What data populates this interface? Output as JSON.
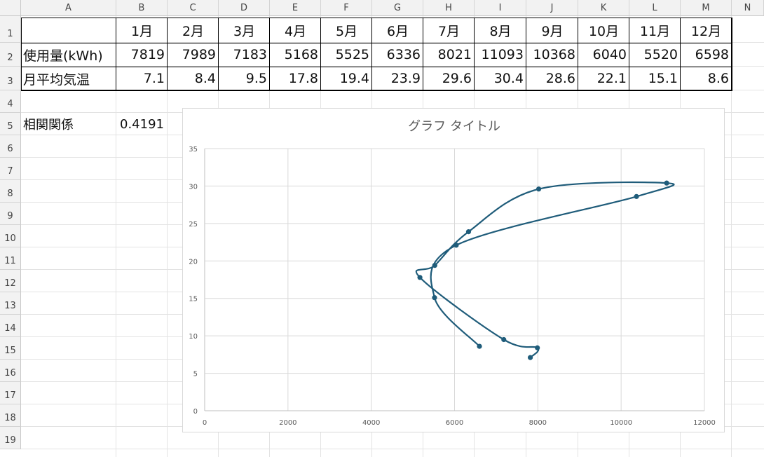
{
  "columns": [
    "A",
    "B",
    "C",
    "D",
    "E",
    "F",
    "G",
    "H",
    "I",
    "J",
    "K",
    "L",
    "M",
    "N"
  ],
  "rows": [
    "1",
    "2",
    "3",
    "4",
    "5",
    "6",
    "7",
    "8",
    "9",
    "10",
    "11",
    "12",
    "13",
    "14",
    "15",
    "16",
    "17",
    "18",
    "19"
  ],
  "table": {
    "months": [
      "1月",
      "2月",
      "3月",
      "4月",
      "5月",
      "6月",
      "7月",
      "8月",
      "9月",
      "10月",
      "11月",
      "12月"
    ],
    "usage_label": "使用量(kWh)",
    "usage": [
      "7819",
      "7989",
      "7183",
      "5168",
      "5525",
      "6336",
      "8021",
      "11093",
      "10368",
      "6040",
      "5520",
      "6598"
    ],
    "temp_label": "月平均気温",
    "temp": [
      "7.1",
      "8.4",
      "9.5",
      "17.8",
      "19.4",
      "23.9",
      "29.6",
      "30.4",
      "28.6",
      "22.1",
      "15.1",
      "8.6"
    ]
  },
  "correlation": {
    "label": "相関関係",
    "value": "0.4191"
  },
  "chart_data": {
    "type": "scatter",
    "title": "グラフ タイトル",
    "smooth_lines": true,
    "marker_color": "#1f5c7a",
    "grid": true,
    "xlim": [
      0,
      12000
    ],
    "ylim": [
      0,
      35
    ],
    "x_ticks": [
      "0",
      "2000",
      "4000",
      "6000",
      "8000",
      "10000",
      "12000"
    ],
    "y_ticks": [
      "0",
      "5",
      "10",
      "15",
      "20",
      "25",
      "30",
      "35"
    ],
    "series": [
      {
        "x": [
          7819,
          7989,
          7183,
          5168,
          5525,
          6336,
          8021,
          11093,
          10368,
          6040,
          5520,
          6598
        ],
        "y": [
          7.1,
          8.4,
          9.5,
          17.8,
          19.4,
          23.9,
          29.6,
          30.4,
          28.6,
          22.1,
          15.1,
          8.6
        ]
      }
    ]
  }
}
